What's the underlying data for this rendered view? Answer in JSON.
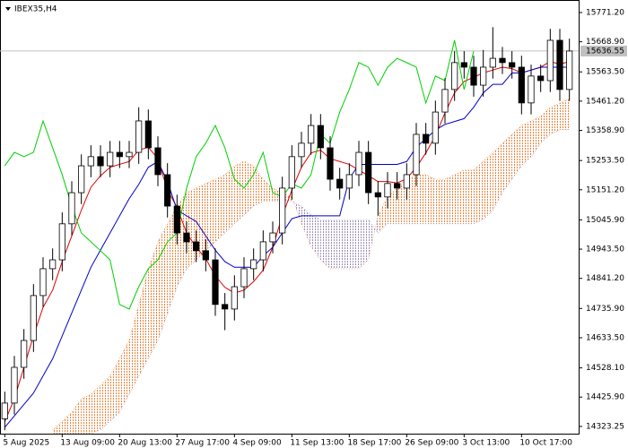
{
  "chart_data": {
    "type": "candlestick",
    "title": "IBEX35,H4",
    "ylim": [
      14298,
      15815
    ],
    "yticks": [
      {
        "value": 15771.2,
        "label": "15771.20"
      },
      {
        "value": 15668.9,
        "label": "15668.90"
      },
      {
        "value": 15563.5,
        "label": "15563.50"
      },
      {
        "value": 15461.2,
        "label": "15461.20"
      },
      {
        "value": 15358.9,
        "label": "15358.90"
      },
      {
        "value": 15253.5,
        "label": "15253.50"
      },
      {
        "value": 15151.2,
        "label": "15151.20"
      },
      {
        "value": 15045.9,
        "label": "15045.90"
      },
      {
        "value": 14943.5,
        "label": "14943.50"
      },
      {
        "value": 14841.2,
        "label": "14841.20"
      },
      {
        "value": 14735.9,
        "label": "14735.90"
      },
      {
        "value": 14633.5,
        "label": "14633.50"
      },
      {
        "value": 14528.1,
        "label": "14528.10"
      },
      {
        "value": 14425.9,
        "label": "14425.90"
      },
      14323.25
    ],
    "xticks": [
      {
        "value": 0,
        "label": "5 Aug 2025"
      },
      {
        "value": 6,
        "label": "13 Aug 09:00"
      },
      {
        "value": 12,
        "label": "20 Aug 13:00"
      },
      {
        "value": 18,
        "label": "27 Aug 17:00"
      },
      {
        "value": 24,
        "label": "4 Sep 09:00"
      },
      {
        "value": 30,
        "label": "11 Sep 13:00"
      },
      {
        "value": 36,
        "label": "18 Sep 17:00"
      },
      {
        "value": 42,
        "label": "26 Sep 09:00"
      },
      {
        "value": 48,
        "label": "3 Oct 13:00"
      },
      {
        "value": 54,
        "label": "10 Oct 17:00"
      }
    ],
    "last_price": 15636.55,
    "bull_color": "#ffffff",
    "bear_color": "#000000",
    "open": [
      14350,
      14405,
      14530,
      14624,
      14781,
      14875,
      14906,
      15032,
      15141,
      15235,
      15267,
      15235,
      15282,
      15267,
      15282,
      15392,
      15298,
      15204,
      15094,
      15000,
      14969,
      14938,
      14906,
      14750,
      14734,
      14812,
      14875,
      14906,
      14969,
      15000,
      15157,
      15267,
      15314,
      15376,
      15298,
      15188,
      15157,
      15204,
      15282,
      15141,
      15126,
      15173,
      15157,
      15204,
      15345,
      15314,
      15423,
      15502,
      15596,
      15580,
      15517,
      15580,
      15611,
      15596,
      15580,
      15455,
      15549,
      15533,
      15674,
      15502
    ],
    "high": [
      14445,
      14570,
      14664,
      14821,
      14915,
      14946,
      15072,
      15181,
      15275,
      15307,
      15307,
      15322,
      15322,
      15322,
      15440,
      15432,
      15338,
      15244,
      15134,
      15040,
      15009,
      14978,
      14946,
      14790,
      14852,
      14915,
      14946,
      15009,
      15040,
      15197,
      15307,
      15354,
      15416,
      15416,
      15338,
      15228,
      15244,
      15322,
      15322,
      15181,
      15213,
      15213,
      15244,
      15385,
      15385,
      15463,
      15542,
      15636,
      15636,
      15620,
      15640,
      15720,
      15651,
      15636,
      15620,
      15589,
      15589,
      15714,
      15714,
      15680
    ],
    "low": [
      14310,
      14365,
      14490,
      14584,
      14741,
      14835,
      14866,
      14992,
      15101,
      15195,
      15195,
      15195,
      15227,
      15227,
      15242,
      15258,
      15164,
      15054,
      14960,
      14929,
      14898,
      14866,
      14710,
      14660,
      14694,
      14772,
      14835,
      14866,
      14929,
      14960,
      15117,
      15227,
      15274,
      15258,
      15148,
      15117,
      15117,
      15164,
      15101,
      15060,
      15086,
      15117,
      15117,
      15164,
      15274,
      15274,
      15383,
      15462,
      15540,
      15477,
      15477,
      15540,
      15556,
      15540,
      15415,
      15415,
      15493,
      15493,
      15462,
      15462
    ],
    "close": [
      14405,
      14530,
      14624,
      14781,
      14875,
      14906,
      15032,
      15141,
      15235,
      15267,
      15235,
      15282,
      15267,
      15282,
      15392,
      15298,
      15204,
      15094,
      15000,
      14969,
      14938,
      14906,
      14750,
      14734,
      14812,
      14875,
      14906,
      14969,
      15000,
      15157,
      15267,
      15314,
      15376,
      15298,
      15188,
      15157,
      15204,
      15282,
      15141,
      15126,
      15173,
      15157,
      15204,
      15345,
      15314,
      15423,
      15502,
      15596,
      15580,
      15517,
      15580,
      15611,
      15596,
      15580,
      15455,
      15549,
      15533,
      15674,
      15502,
      15636.55
    ],
    "lines": [
      {
        "name": "Tenkan-sen",
        "color": "#e00000",
        "values": [
          14340,
          14420,
          14530,
          14640,
          14740,
          14800,
          14900,
          14990,
          15080,
          15160,
          15200,
          15230,
          15240,
          15250,
          15290,
          15300,
          15260,
          15150,
          15090,
          15000,
          14950,
          14910,
          14850,
          14810,
          14790,
          14800,
          14830,
          14870,
          14950,
          15060,
          15150,
          15230,
          15280,
          15290,
          15260,
          15250,
          15240,
          15220,
          15200,
          15180,
          15180,
          15175,
          15190,
          15230,
          15280,
          15340,
          15420,
          15490,
          15530,
          15545,
          15560,
          15570,
          15580,
          15575,
          15560,
          15570,
          15580,
          15600,
          15590,
          15600
        ]
      },
      {
        "name": "Kijun-sen",
        "color": "#0000c8",
        "values": [
          14320,
          14360,
          14400,
          14440,
          14500,
          14560,
          14640,
          14720,
          14800,
          14880,
          14940,
          15000,
          15060,
          15120,
          15170,
          15230,
          15250,
          15180,
          15080,
          15060,
          15040,
          14990,
          14940,
          14900,
          14880,
          14880,
          14880,
          14920,
          14950,
          15000,
          15050,
          15060,
          15060,
          15060,
          15060,
          15060,
          15190,
          15240,
          15240,
          15240,
          15240,
          15240,
          15250,
          15300,
          15330,
          15360,
          15380,
          15390,
          15400,
          15440,
          15490,
          15520,
          15520,
          15560,
          15560,
          15570,
          15580,
          15580,
          15580,
          15580
        ]
      },
      {
        "name": "Chikou Span",
        "color": "#00d000",
        "values": [
          15235,
          15282,
          15267,
          15282,
          15392,
          15298,
          15204,
          15094,
          15000,
          14969,
          14938,
          14906,
          14750,
          14734,
          14812,
          14875,
          14906,
          14969,
          15000,
          15157,
          15267,
          15314,
          15376,
          15298,
          15188,
          15157,
          15204,
          15282,
          15141,
          15126,
          15173,
          15157,
          15204,
          15345,
          15314,
          15423,
          15502,
          15596,
          15580,
          15517,
          15580,
          15611,
          15596,
          15580,
          15455,
          15549,
          15533,
          15674,
          15502,
          15636.55,
          null,
          null,
          null,
          null,
          null,
          null,
          null,
          null,
          null,
          null
        ]
      }
    ],
    "cloud": {
      "up_color": "#e8823c",
      "down_color": "#9a8cb8",
      "span_a": [
        null,
        null,
        null,
        null,
        null,
        14311,
        14342,
        14373,
        14420,
        14436,
        14467,
        14499,
        14561,
        14624,
        14749,
        14875,
        14969,
        15032,
        15094,
        15141,
        15157,
        15173,
        15188,
        15204,
        15235,
        15251,
        15235,
        15188,
        15157,
        15141,
        15126,
        15032,
        14953,
        14906,
        14875,
        14875,
        14875,
        14875,
        14906,
        15063,
        15126,
        15157,
        15188,
        15204,
        15204,
        15188,
        15188,
        15204,
        15220,
        15220,
        15251,
        15282,
        15314,
        15345,
        15376,
        15392,
        15408,
        15439,
        15455,
        15470
      ],
      "span_b": [
        null,
        null,
        null,
        null,
        null,
        14298,
        14298,
        14298,
        14298,
        14298,
        14311,
        14342,
        14373,
        14436,
        14499,
        14561,
        14624,
        14718,
        14812,
        14875,
        14906,
        14938,
        14969,
        15000,
        15032,
        15063,
        15094,
        15110,
        15110,
        15110,
        15110,
        15094,
        15063,
        15047,
        15047,
        15047,
        15047,
        15047,
        15047,
        15000,
        15032,
        15032,
        15032,
        15032,
        15032,
        15032,
        15032,
        15032,
        15032,
        15032,
        15047,
        15079,
        15141,
        15188,
        15235,
        15267,
        15314,
        15345,
        15361,
        15361
      ]
    }
  }
}
